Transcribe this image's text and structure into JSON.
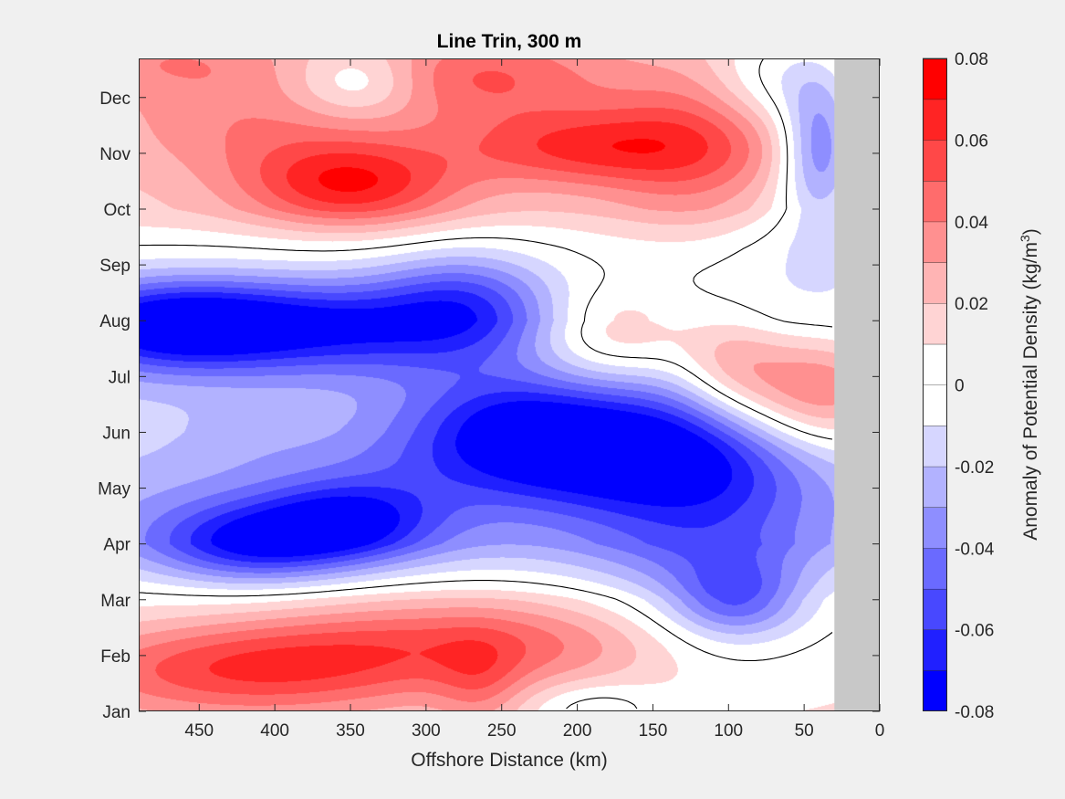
{
  "chart_data": {
    "type": "heatmap",
    "subtype": "filled-contour",
    "title": "Line Trin, 300 m",
    "xlabel": "Offshore Distance (km)",
    "xlim": [
      490,
      0
    ],
    "x_reversed": true,
    "x_ticks": [
      450,
      400,
      350,
      300,
      250,
      200,
      150,
      100,
      50,
      0
    ],
    "x_tick_labels": [
      "450",
      "400",
      "350",
      "300",
      "250",
      "200",
      "150",
      "100",
      "50",
      "0"
    ],
    "y_ticks": [
      "Jan",
      "Feb",
      "Mar",
      "Apr",
      "May",
      "Jun",
      "Jul",
      "Aug",
      "Sep",
      "Oct",
      "Nov",
      "Dec"
    ],
    "ylim": [
      1,
      12.7
    ],
    "no_data_region_km": [
      0,
      30
    ],
    "no_data_color": "#c8c8c8",
    "zero_contour": true,
    "colorbar": {
      "label": "Anomaly of Potential Density (kg/m",
      "label_superscript": "3",
      "label_suffix": ")",
      "range": [
        -0.08,
        0.08
      ],
      "levels": [
        -0.08,
        -0.07,
        -0.06,
        -0.05,
        -0.04,
        -0.03,
        -0.02,
        -0.01,
        0,
        0.01,
        0.02,
        0.03,
        0.04,
        0.05,
        0.06,
        0.07,
        0.08
      ],
      "tick_values": [
        -0.08,
        -0.06,
        -0.04,
        -0.02,
        0,
        0.02,
        0.04,
        0.06,
        0.08
      ],
      "tick_labels": [
        "-0.08",
        "-0.06",
        "-0.04",
        "-0.02",
        "0",
        "0.02",
        "0.04",
        "0.06",
        "0.08"
      ],
      "colors": [
        "#0000ff",
        "#2020ff",
        "#4848ff",
        "#6a6aff",
        "#8e8eff",
        "#b2b2ff",
        "#d6d6ff",
        "#ffffff",
        "#ffffff",
        "#ffd4d4",
        "#ffb4b4",
        "#ff9090",
        "#ff6c6c",
        "#ff4848",
        "#ff2424",
        "#ff0000"
      ]
    },
    "anomaly_features": [
      {
        "x": 350,
        "y": 10.45,
        "sx": 50,
        "sy": 0.55,
        "amp": 0.052
      },
      {
        "x": 415,
        "y": 11.5,
        "sx": 70,
        "sy": 0.7,
        "amp": 0.022
      },
      {
        "x": 200,
        "y": 11.1,
        "sx": 60,
        "sy": 0.5,
        "amp": 0.042
      },
      {
        "x": 120,
        "y": 11.2,
        "sx": 45,
        "sy": 1.0,
        "amp": 0.032
      },
      {
        "x": 260,
        "y": 12.4,
        "sx": 60,
        "sy": 0.6,
        "amp": 0.035
      },
      {
        "x": 470,
        "y": 12.7,
        "sx": 60,
        "sy": 0.5,
        "amp": 0.022
      },
      {
        "x": 345,
        "y": 12.25,
        "sx": 30,
        "sy": 0.45,
        "amp": -0.028
      },
      {
        "x": 40,
        "y": 11.1,
        "sx": 18,
        "sy": 0.9,
        "amp": -0.052
      },
      {
        "x": 70,
        "y": 12.3,
        "sx": 30,
        "sy": 0.6,
        "amp": -0.025
      },
      {
        "x": 55,
        "y": 9.7,
        "sx": 35,
        "sy": 0.8,
        "amp": -0.012
      },
      {
        "x": 175,
        "y": 7.8,
        "sx": 40,
        "sy": 0.6,
        "amp": 0.04
      },
      {
        "x": 385,
        "y": 7.9,
        "sx": 100,
        "sy": 0.6,
        "amp": -0.058
      },
      {
        "x": 470,
        "y": 7.95,
        "sx": 50,
        "sy": 0.55,
        "amp": -0.04
      },
      {
        "x": 275,
        "y": 8.5,
        "sx": 40,
        "sy": 0.6,
        "amp": -0.03
      },
      {
        "x": 45,
        "y": 6.7,
        "sx": 45,
        "sy": 0.8,
        "amp": 0.062
      },
      {
        "x": 100,
        "y": 7.3,
        "sx": 25,
        "sy": 0.7,
        "amp": 0.025
      },
      {
        "x": 190,
        "y": 5.7,
        "sx": 90,
        "sy": 0.75,
        "amp": -0.068
      },
      {
        "x": 235,
        "y": 6.2,
        "sx": 40,
        "sy": 0.55,
        "amp": -0.02
      },
      {
        "x": 115,
        "y": 4.4,
        "sx": 60,
        "sy": 1.6,
        "amp": -0.035
      },
      {
        "x": 95,
        "y": 3.0,
        "sx": 30,
        "sy": 0.5,
        "amp": -0.038
      },
      {
        "x": 350,
        "y": 4.4,
        "sx": 40,
        "sy": 0.5,
        "amp": -0.044
      },
      {
        "x": 415,
        "y": 4.0,
        "sx": 45,
        "sy": 0.5,
        "amp": -0.046
      },
      {
        "x": 390,
        "y": 4.5,
        "sx": 120,
        "sy": 0.9,
        "amp": -0.018
      },
      {
        "x": 270,
        "y": 7.0,
        "sx": 45,
        "sy": 0.9,
        "amp": -0.01
      },
      {
        "x": 420,
        "y": 1.75,
        "sx": 90,
        "sy": 0.6,
        "amp": 0.048
      },
      {
        "x": 300,
        "y": 2.3,
        "sx": 80,
        "sy": 0.6,
        "amp": 0.03
      },
      {
        "x": 200,
        "y": 2.2,
        "sx": 60,
        "sy": 0.6,
        "amp": 0.018
      },
      {
        "x": 265,
        "y": 1.5,
        "sx": 20,
        "sy": 0.6,
        "amp": 0.018
      },
      {
        "x": 190,
        "y": 1.05,
        "sx": 30,
        "sy": 0.35,
        "amp": -0.02
      },
      {
        "x": 420,
        "y": 6.0,
        "sx": 35,
        "sy": 0.45,
        "amp": -0.006
      }
    ],
    "anomaly_baseline": [
      {
        "y": 1,
        "v": 0.012
      },
      {
        "y": 3,
        "v": 0.006
      },
      {
        "y": 4,
        "v": -0.015
      },
      {
        "y": 6,
        "v": -0.012
      },
      {
        "y": 8,
        "v": -0.018
      },
      {
        "y": 9.3,
        "v": 0.002
      },
      {
        "y": 10,
        "v": 0.016
      },
      {
        "y": 12.7,
        "v": 0.014
      }
    ]
  }
}
